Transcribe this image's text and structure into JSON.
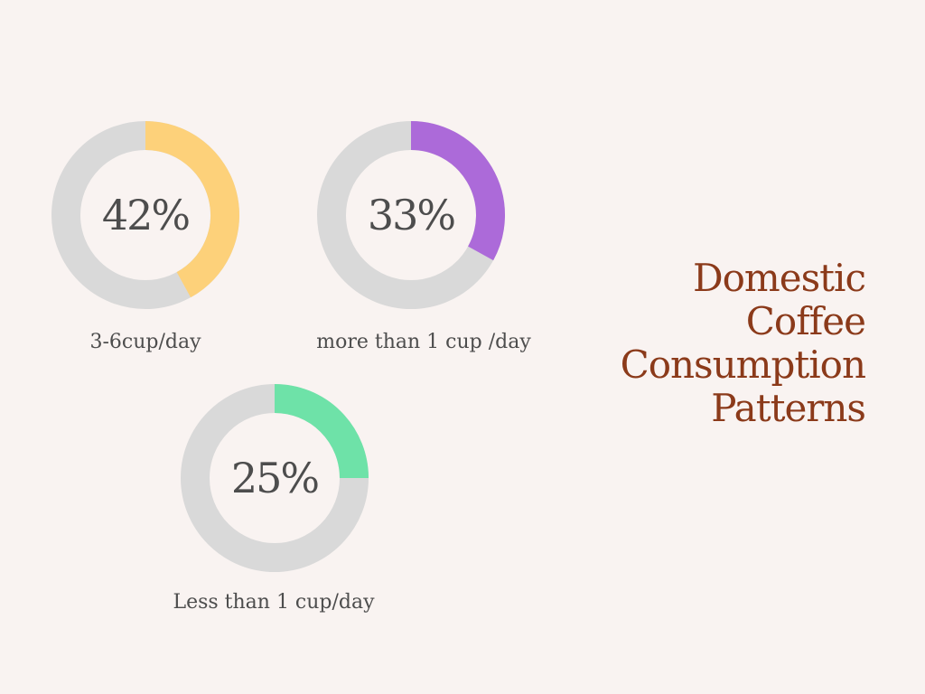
{
  "title_lines": [
    "Domestic",
    "Coffee",
    "Consumption",
    "Patterns"
  ],
  "chart_data": {
    "type": "pie",
    "variant": "donut",
    "title": "Domestic Coffee Consumption Patterns",
    "track_color": "#d9d9d9",
    "series": [
      {
        "label": "3-6cup/day",
        "value": 42,
        "value_text": "42%",
        "color": "#fdd17a"
      },
      {
        "label": "more than 1 cup /day",
        "value": 33,
        "value_text": "33%",
        "color": "#ac6ad9"
      },
      {
        "label": "Less than 1 cup/day",
        "value": 25,
        "value_text": "25%",
        "color": "#6ee2a8"
      }
    ]
  }
}
